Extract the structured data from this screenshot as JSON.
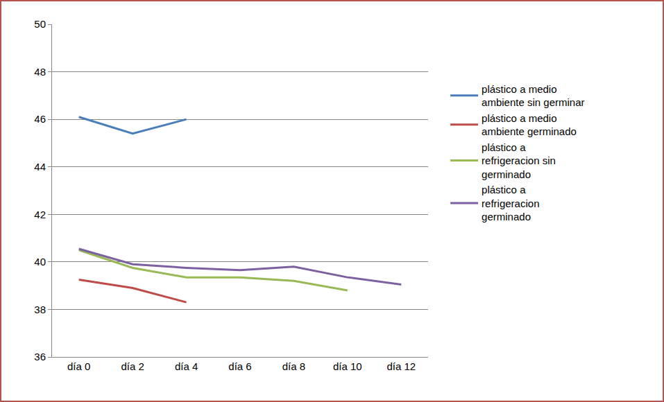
{
  "chart_data": {
    "type": "line",
    "categories": [
      "día 0",
      "día 2",
      "día 4",
      "día 6",
      "día 8",
      "día 10",
      "día 12"
    ],
    "series": [
      {
        "name": "plástico a medio ambiente sin germinar",
        "color": "#4a7ebb",
        "values": [
          46.1,
          45.4,
          46.0,
          null,
          null,
          null,
          null
        ]
      },
      {
        "name": "plástico a medio ambiente germinado",
        "color": "#be4b48",
        "values": [
          39.25,
          38.9,
          38.3,
          null,
          null,
          null,
          null
        ]
      },
      {
        "name": "plástico a refrigeracion sin germinado",
        "color": "#98b954",
        "values": [
          40.5,
          39.75,
          39.35,
          39.35,
          39.2,
          38.8,
          null
        ]
      },
      {
        "name": "plástico a refrigeracion germinado",
        "color": "#7d60a0",
        "values": [
          40.55,
          39.9,
          39.75,
          39.65,
          39.8,
          39.35,
          39.05
        ]
      }
    ],
    "ylim": [
      36,
      50
    ],
    "yticks": [
      36,
      38,
      40,
      42,
      44,
      46,
      48,
      50
    ],
    "grid": true,
    "legend": "right"
  }
}
